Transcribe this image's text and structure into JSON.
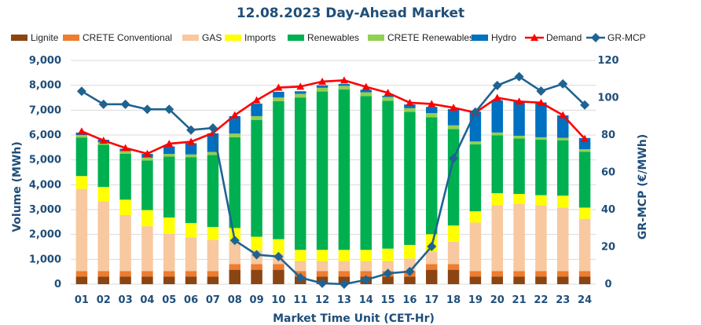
{
  "chart_data": {
    "type": "bar",
    "title": "12.08.2023  Day-Ahead Market",
    "xlabel": "Market Time Unit (CET-Hr)",
    "ylabel": "Volume (MWh)",
    "y2label": "GR-MCP (€/MWh)",
    "ylim": [
      0,
      9000
    ],
    "y2lim": [
      0,
      120
    ],
    "yticks": [
      0,
      1000,
      2000,
      3000,
      4000,
      5000,
      6000,
      7000,
      8000,
      9000
    ],
    "ytick_labels": [
      "0",
      "1,000",
      "2,000",
      "3,000",
      "4,000",
      "5,000",
      "6,000",
      "7,000",
      "8,000",
      "9,000"
    ],
    "y2ticks": [
      0,
      20,
      40,
      60,
      80,
      100,
      120
    ],
    "y2tick_labels": [
      "0",
      "20",
      "40",
      "60",
      "80",
      "100",
      "120"
    ],
    "grid": true,
    "legend_position": "top",
    "categories": [
      "01",
      "02",
      "03",
      "04",
      "05",
      "06",
      "07",
      "08",
      "09",
      "10",
      "11",
      "12",
      "13",
      "14",
      "15",
      "16",
      "17",
      "18",
      "19",
      "20",
      "21",
      "22",
      "23",
      "24"
    ],
    "stacked_series": [
      {
        "name": "Lignite",
        "color": "#8b4513",
        "values": [
          300,
          300,
          300,
          300,
          300,
          300,
          300,
          580,
          580,
          580,
          300,
          300,
          300,
          300,
          300,
          300,
          580,
          580,
          300,
          300,
          300,
          300,
          300,
          300
        ]
      },
      {
        "name": "CRETE Conventional",
        "color": "#ed7d31",
        "values": [
          230,
          230,
          230,
          230,
          230,
          230,
          230,
          230,
          230,
          230,
          230,
          230,
          230,
          230,
          230,
          230,
          230,
          230,
          230,
          230,
          230,
          230,
          230,
          230
        ]
      },
      {
        "name": "GAS",
        "color": "#f8c8a0",
        "values": [
          3300,
          2800,
          2250,
          1800,
          1500,
          1350,
          1250,
          900,
          550,
          400,
          400,
          400,
          400,
          400,
          400,
          500,
          500,
          900,
          1950,
          2650,
          2700,
          2650,
          2550,
          2100
        ]
      },
      {
        "name": "Imports",
        "color": "#ffff00",
        "values": [
          520,
          580,
          620,
          650,
          650,
          580,
          520,
          550,
          550,
          600,
          450,
          450,
          450,
          450,
          500,
          550,
          700,
          650,
          450,
          480,
          400,
          400,
          480,
          450
        ]
      },
      {
        "name": "Renewables",
        "color": "#00b050",
        "values": [
          1550,
          1700,
          1850,
          2000,
          2450,
          2650,
          2900,
          3650,
          4700,
          5550,
          6130,
          6370,
          6450,
          6190,
          5950,
          5350,
          4700,
          3880,
          2700,
          2330,
          2230,
          2230,
          2230,
          2250
        ]
      },
      {
        "name": "CRETE Renewables",
        "color": "#92d050",
        "values": [
          100,
          100,
          100,
          110,
          110,
          110,
          120,
          150,
          150,
          150,
          150,
          150,
          150,
          150,
          150,
          150,
          170,
          150,
          110,
          110,
          110,
          100,
          100,
          100
        ]
      },
      {
        "name": "Hydro",
        "color": "#0070c0",
        "values": [
          100,
          100,
          100,
          150,
          300,
          450,
          750,
          700,
          500,
          230,
          100,
          100,
          70,
          100,
          50,
          150,
          250,
          650,
          1200,
          1300,
          1400,
          1400,
          900,
          450
        ]
      }
    ],
    "line_series": [
      {
        "name": "Demand",
        "color": "#ff0000",
        "axis": "left",
        "marker": "triangle",
        "values": [
          6150,
          5780,
          5480,
          5250,
          5650,
          5730,
          6080,
          6800,
          7400,
          7910,
          7950,
          8150,
          8200,
          7940,
          7700,
          7300,
          7250,
          7100,
          6900,
          7500,
          7350,
          7300,
          6800,
          5850
        ]
      },
      {
        "name": "GR-MCP",
        "color": "#1f6391",
        "axis": "right",
        "marker": "diamond",
        "values": [
          103.5,
          96.5,
          96.5,
          93.8,
          93.8,
          82.7,
          83.8,
          23.5,
          15.8,
          14.8,
          3.5,
          0.5,
          0,
          2.3,
          5.8,
          6.8,
          20.2,
          67.5,
          92.3,
          106.6,
          111.3,
          103.6,
          107.4,
          96.1
        ]
      }
    ]
  }
}
